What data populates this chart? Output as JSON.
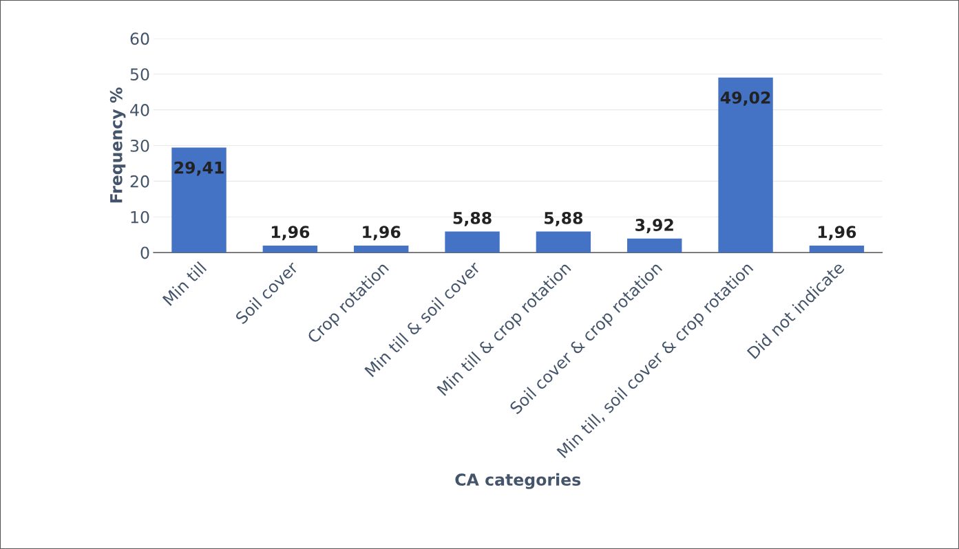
{
  "chart_data": {
    "type": "bar",
    "xlabel": "CA categories",
    "ylabel": "Frequency %",
    "categories": [
      "Min till",
      "Soil cover",
      "Crop rotation",
      "Min till & soil cover",
      "Min till & crop rotation",
      "Soil cover & crop rotation",
      "Min till, soil cover & crop rotation",
      "Did not indicate"
    ],
    "values": [
      29.41,
      1.96,
      1.96,
      5.88,
      5.88,
      3.92,
      49.02,
      1.96
    ],
    "value_labels": [
      "29,41",
      "1,96",
      "1,96",
      "5,88",
      "5,88",
      "3,92",
      "49,02",
      "1,96"
    ],
    "color": "#4472c4",
    "ylim": [
      0,
      60
    ],
    "yticks": [
      0,
      10,
      20,
      30,
      40,
      50,
      60
    ],
    "grid": "y",
    "legend": false
  }
}
